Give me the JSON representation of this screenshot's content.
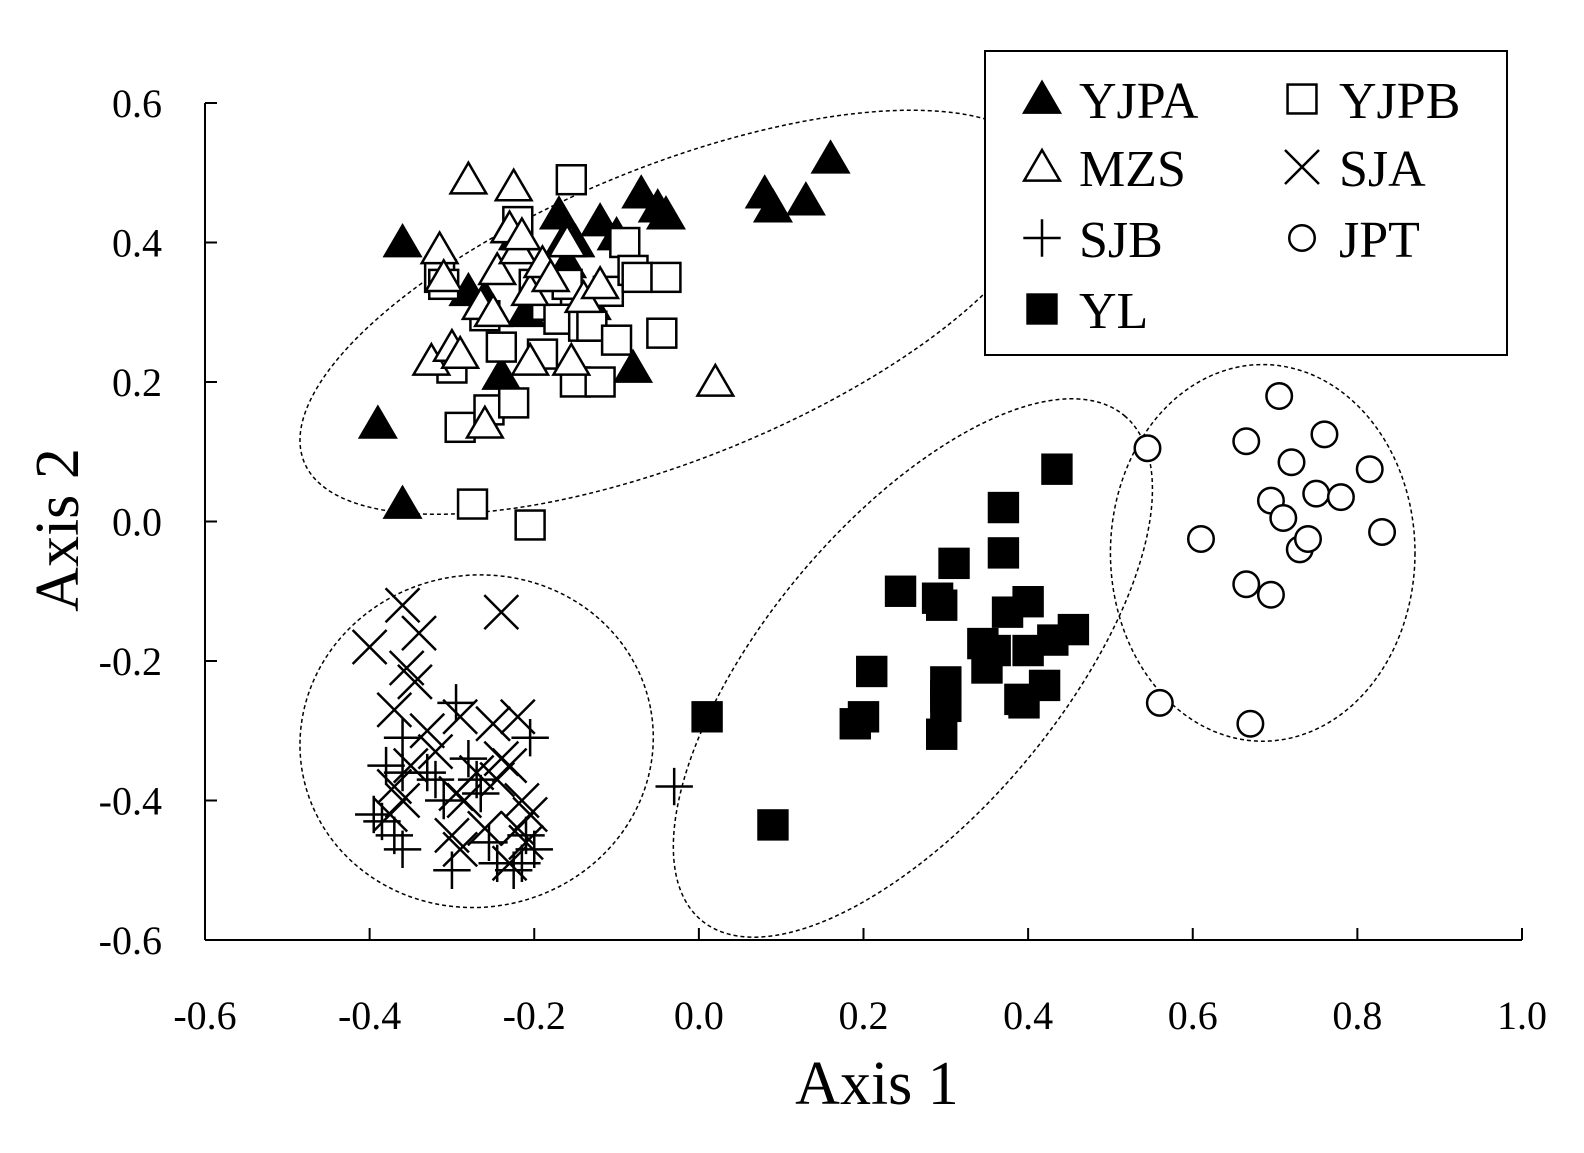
{
  "chart_data": {
    "type": "scatter",
    "title": "",
    "xlabel": "Axis 1",
    "ylabel": "Axis 2",
    "xlim": [
      -0.6,
      1.0
    ],
    "ylim": [
      -0.6,
      0.6
    ],
    "xticks": [
      "-0.6",
      "-0.4",
      "-0.2",
      "0.0",
      "0.2",
      "0.4",
      "0.6",
      "0.8",
      "1.0"
    ],
    "yticks": [
      "0.6",
      "0.4",
      "0.2",
      "0.0",
      "-0.2",
      "-0.4",
      "-0.6"
    ],
    "grid": false,
    "legend_position": "top-right",
    "series": [
      {
        "name": "YJPA",
        "marker": "triangle-filled",
        "points": [
          [
            -0.36,
            0.4
          ],
          [
            -0.39,
            0.14
          ],
          [
            -0.36,
            0.025
          ],
          [
            -0.28,
            0.33
          ],
          [
            -0.26,
            0.32
          ],
          [
            -0.24,
            0.21
          ],
          [
            -0.23,
            0.42
          ],
          [
            -0.22,
            0.41
          ],
          [
            -0.21,
            0.3
          ],
          [
            -0.19,
            0.36
          ],
          [
            -0.17,
            0.44
          ],
          [
            -0.165,
            0.4
          ],
          [
            -0.16,
            0.37
          ],
          [
            -0.15,
            0.4
          ],
          [
            -0.13,
            0.31
          ],
          [
            -0.12,
            0.43
          ],
          [
            -0.1,
            0.41
          ],
          [
            -0.08,
            0.22
          ],
          [
            -0.07,
            0.47
          ],
          [
            -0.05,
            0.45
          ],
          [
            -0.04,
            0.44
          ],
          [
            0.08,
            0.47
          ],
          [
            0.09,
            0.45
          ],
          [
            0.13,
            0.46
          ],
          [
            0.16,
            0.52
          ]
        ]
      },
      {
        "name": "YJPB",
        "marker": "square-open",
        "points": [
          [
            -0.315,
            0.35
          ],
          [
            -0.31,
            0.34
          ],
          [
            -0.3,
            0.22
          ],
          [
            -0.29,
            0.135
          ],
          [
            -0.275,
            0.025
          ],
          [
            -0.26,
            0.295
          ],
          [
            -0.255,
            0.16
          ],
          [
            -0.24,
            0.25
          ],
          [
            -0.225,
            0.17
          ],
          [
            -0.22,
            0.43
          ],
          [
            -0.205,
            -0.005
          ],
          [
            -0.2,
            0.34
          ],
          [
            -0.19,
            0.24
          ],
          [
            -0.185,
            0.31
          ],
          [
            -0.17,
            0.29
          ],
          [
            -0.16,
            0.34
          ],
          [
            -0.155,
            0.49
          ],
          [
            -0.15,
            0.2
          ],
          [
            -0.14,
            0.28
          ],
          [
            -0.13,
            0.28
          ],
          [
            -0.12,
            0.2
          ],
          [
            -0.11,
            0.33
          ],
          [
            -0.1,
            0.26
          ],
          [
            -0.09,
            0.4
          ],
          [
            -0.08,
            0.36
          ],
          [
            -0.075,
            0.35
          ],
          [
            -0.04,
            0.35
          ],
          [
            -0.045,
            0.27
          ]
        ]
      },
      {
        "name": "MZS",
        "marker": "triangle-open",
        "points": [
          [
            -0.325,
            0.23
          ],
          [
            -0.315,
            0.39
          ],
          [
            -0.31,
            0.35
          ],
          [
            -0.3,
            0.25
          ],
          [
            -0.29,
            0.24
          ],
          [
            -0.28,
            0.49
          ],
          [
            -0.265,
            0.31
          ],
          [
            -0.26,
            0.14
          ],
          [
            -0.25,
            0.3
          ],
          [
            -0.245,
            0.36
          ],
          [
            -0.23,
            0.42
          ],
          [
            -0.225,
            0.48
          ],
          [
            -0.22,
            0.39
          ],
          [
            -0.215,
            0.41
          ],
          [
            -0.205,
            0.33
          ],
          [
            -0.205,
            0.23
          ],
          [
            -0.19,
            0.37
          ],
          [
            -0.18,
            0.35
          ],
          [
            -0.16,
            0.4
          ],
          [
            -0.155,
            0.23
          ],
          [
            -0.14,
            0.32
          ],
          [
            -0.12,
            0.34
          ],
          [
            0.02,
            0.2
          ]
        ]
      },
      {
        "name": "SJA",
        "marker": "x",
        "points": [
          [
            -0.4,
            -0.18
          ],
          [
            -0.36,
            -0.12
          ],
          [
            -0.34,
            -0.16
          ],
          [
            -0.355,
            -0.21
          ],
          [
            -0.345,
            -0.23
          ],
          [
            -0.37,
            -0.27
          ],
          [
            -0.33,
            -0.3
          ],
          [
            -0.29,
            -0.28
          ],
          [
            -0.25,
            -0.29
          ],
          [
            -0.24,
            -0.13
          ],
          [
            -0.22,
            -0.28
          ],
          [
            -0.32,
            -0.33
          ],
          [
            -0.35,
            -0.35
          ],
          [
            -0.37,
            -0.38
          ],
          [
            -0.375,
            -0.42
          ],
          [
            -0.36,
            -0.4
          ],
          [
            -0.295,
            -0.39
          ],
          [
            -0.285,
            -0.4
          ],
          [
            -0.27,
            -0.36
          ],
          [
            -0.245,
            -0.37
          ],
          [
            -0.24,
            -0.34
          ],
          [
            -0.23,
            -0.35
          ],
          [
            -0.215,
            -0.4
          ],
          [
            -0.205,
            -0.42
          ],
          [
            -0.22,
            -0.44
          ],
          [
            -0.3,
            -0.45
          ],
          [
            -0.29,
            -0.47
          ],
          [
            -0.26,
            -0.44
          ],
          [
            -0.23,
            -0.49
          ],
          [
            -0.21,
            -0.46
          ]
        ]
      },
      {
        "name": "SJB",
        "marker": "plus",
        "points": [
          [
            -0.36,
            -0.31
          ],
          [
            -0.38,
            -0.35
          ],
          [
            -0.36,
            -0.36
          ],
          [
            -0.395,
            -0.42
          ],
          [
            -0.385,
            -0.43
          ],
          [
            -0.37,
            -0.45
          ],
          [
            -0.36,
            -0.47
          ],
          [
            -0.33,
            -0.36
          ],
          [
            -0.32,
            -0.37
          ],
          [
            -0.31,
            -0.4
          ],
          [
            -0.295,
            -0.26
          ],
          [
            -0.28,
            -0.34
          ],
          [
            -0.27,
            -0.37
          ],
          [
            -0.265,
            -0.39
          ],
          [
            -0.255,
            -0.46
          ],
          [
            -0.3,
            -0.5
          ],
          [
            -0.245,
            -0.49
          ],
          [
            -0.225,
            -0.5
          ],
          [
            -0.215,
            -0.49
          ],
          [
            -0.21,
            -0.45
          ],
          [
            -0.205,
            -0.31
          ],
          [
            -0.2,
            -0.47
          ],
          [
            -0.03,
            -0.38
          ]
        ]
      },
      {
        "name": "JPT",
        "marker": "circle-open",
        "points": [
          [
            0.545,
            0.105
          ],
          [
            0.56,
            -0.26
          ],
          [
            0.61,
            -0.025
          ],
          [
            0.665,
            0.115
          ],
          [
            0.665,
            -0.09
          ],
          [
            0.67,
            -0.29
          ],
          [
            0.695,
            0.03
          ],
          [
            0.695,
            -0.105
          ],
          [
            0.705,
            0.18
          ],
          [
            0.71,
            0.005
          ],
          [
            0.72,
            0.085
          ],
          [
            0.73,
            -0.04
          ],
          [
            0.74,
            -0.025
          ],
          [
            0.75,
            0.04
          ],
          [
            0.76,
            0.125
          ],
          [
            0.78,
            0.035
          ],
          [
            0.815,
            0.075
          ],
          [
            0.83,
            -0.015
          ]
        ]
      },
      {
        "name": "YL",
        "marker": "square-filled",
        "points": [
          [
            0.01,
            -0.28
          ],
          [
            0.09,
            -0.435
          ],
          [
            0.19,
            -0.29
          ],
          [
            0.2,
            -0.28
          ],
          [
            0.21,
            -0.215
          ],
          [
            0.245,
            -0.1
          ],
          [
            0.29,
            -0.11
          ],
          [
            0.295,
            -0.12
          ],
          [
            0.3,
            -0.23
          ],
          [
            0.3,
            -0.25
          ],
          [
            0.3,
            -0.265
          ],
          [
            0.295,
            -0.305
          ],
          [
            0.31,
            -0.06
          ],
          [
            0.345,
            -0.175
          ],
          [
            0.35,
            -0.21
          ],
          [
            0.36,
            -0.185
          ],
          [
            0.37,
            0.02
          ],
          [
            0.37,
            -0.045
          ],
          [
            0.375,
            -0.13
          ],
          [
            0.39,
            -0.255
          ],
          [
            0.395,
            -0.26
          ],
          [
            0.4,
            -0.115
          ],
          [
            0.4,
            -0.185
          ],
          [
            0.42,
            -0.235
          ],
          [
            0.43,
            -0.17
          ],
          [
            0.435,
            0.075
          ],
          [
            0.455,
            -0.155
          ]
        ]
      }
    ],
    "cluster_ellipses": [
      {
        "cx": -0.03,
        "cy": 0.3,
        "rx": 0.485,
        "ry": 0.21,
        "rotation_deg": -22
      },
      {
        "cx": -0.27,
        "cy": -0.315,
        "rx": 0.215,
        "ry": 0.238,
        "rotation_deg": -10
      },
      {
        "cx": 0.26,
        "cy": -0.21,
        "rx": 0.4,
        "ry": 0.21,
        "rotation_deg": -50
      },
      {
        "cx": 0.685,
        "cy": -0.045,
        "rx": 0.185,
        "ry": 0.27,
        "rotation_deg": 0
      }
    ],
    "legend_columns": [
      [
        "YJPA",
        "MZS",
        "SJB",
        "YL"
      ],
      [
        "YJPB",
        "SJA",
        "JPT"
      ]
    ]
  }
}
